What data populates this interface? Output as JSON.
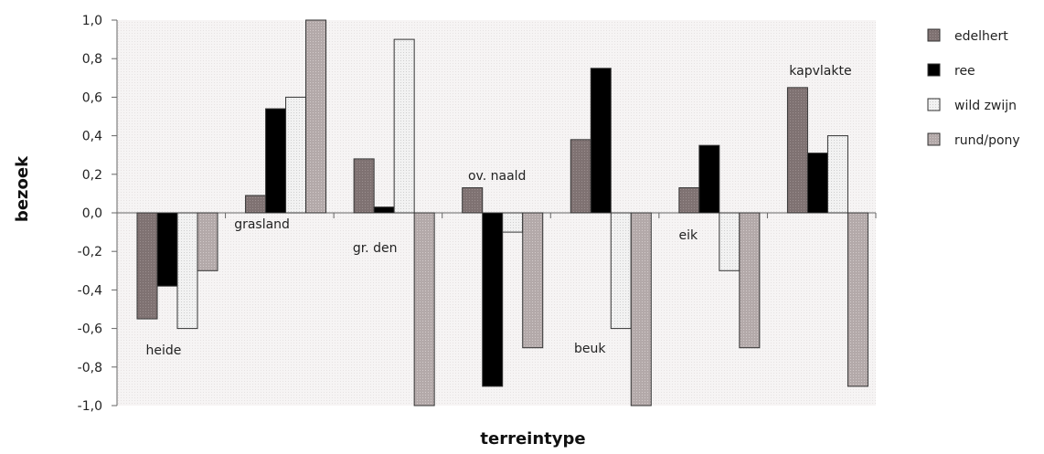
{
  "chart_data": {
    "type": "bar",
    "xlabel": "terreintype",
    "ylabel": "bezoek",
    "ylim": [
      -1.0,
      1.0
    ],
    "yticks": [
      "-1,0",
      "-0,8",
      "-0,6",
      "-0,4",
      "-0,2",
      "0,0",
      "0,2",
      "0,4",
      "0,6",
      "0,8",
      "1,0"
    ],
    "grid": false,
    "legend_position": "right",
    "categories": [
      "heide",
      "grasland",
      "gr. den",
      "ov. naald",
      "beuk",
      "eik",
      "kapvlakte"
    ],
    "series": [
      {
        "name": "edelhert",
        "color": "#7f7272",
        "pattern": "dots-dark",
        "values": [
          -0.55,
          0.09,
          0.28,
          0.13,
          0.38,
          0.13,
          0.65
        ]
      },
      {
        "name": "ree",
        "color": "#000000",
        "pattern": "solid",
        "values": [
          -0.38,
          0.54,
          0.03,
          -0.9,
          0.75,
          0.35,
          0.31
        ]
      },
      {
        "name": "wild zwijn",
        "color": "#ededed",
        "pattern": "dots-light",
        "values": [
          -0.6,
          0.6,
          0.9,
          -0.1,
          -0.6,
          -0.3,
          0.4
        ]
      },
      {
        "name": "rund/pony",
        "color": "#b3a9a9",
        "pattern": "dots-mid",
        "values": [
          -0.3,
          1.0,
          -1.0,
          -0.7,
          -1.0,
          -0.7,
          -0.9
        ]
      }
    ]
  }
}
